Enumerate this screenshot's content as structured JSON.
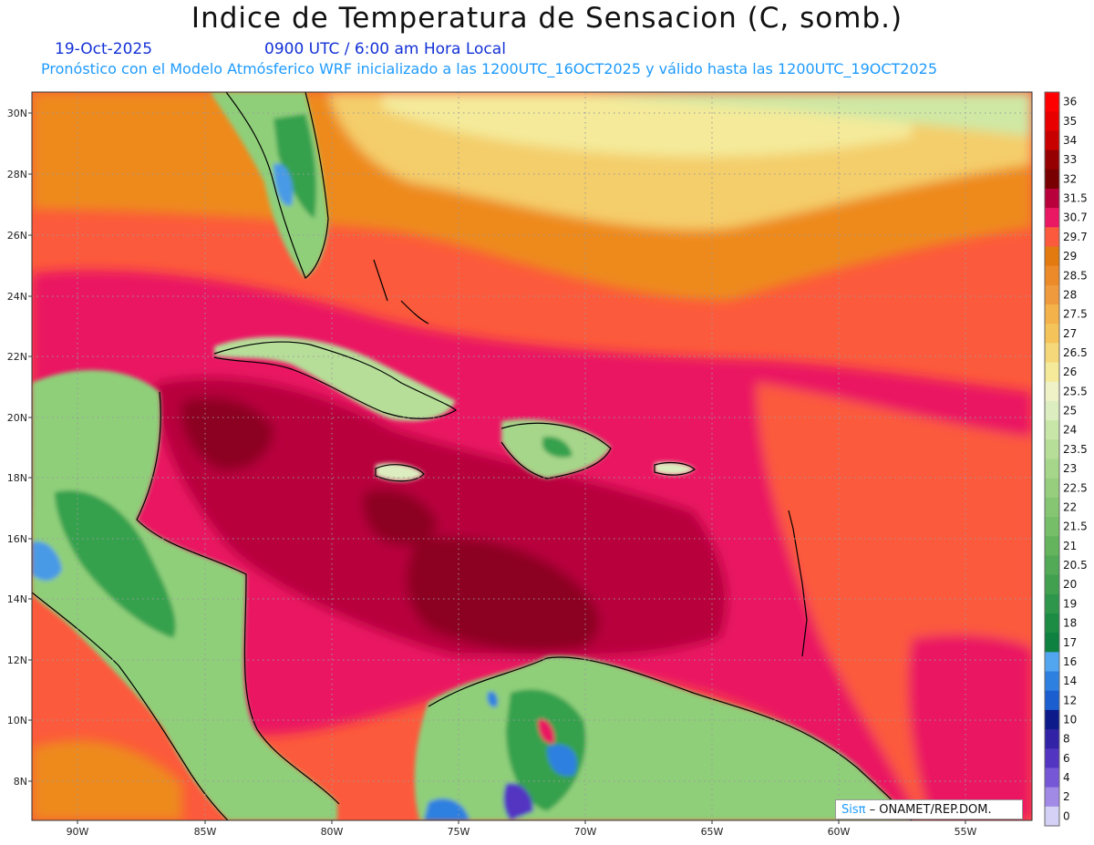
{
  "header": {
    "title": "Indice de Temperatura de Sensacion (C, somb.)",
    "date": "19-Oct-2025",
    "time": "0900 UTC / 6:00 am Hora Local",
    "subtitle": "Pronóstico con el Modelo Atmósferico WRF inicializado a las 1200UTC_16OCT2025 y válido hasta las  1200UTC_19OCT2025"
  },
  "map": {
    "lat_ticks": [
      "30N",
      "28N",
      "26N",
      "24N",
      "22N",
      "20N",
      "18N",
      "16N",
      "14N",
      "12N",
      "10N",
      "8N"
    ],
    "lon_ticks": [
      "90W",
      "85W",
      "80W",
      "75W",
      "70W",
      "65W",
      "60W",
      "55W"
    ],
    "colors": {
      "ocean_hot": "#ea1862",
      "ocean_very_hot": "#b8003c",
      "ocean_extreme": "#8c0020",
      "ocean_warm": "#fc5a3c",
      "ocean_mild": "#ee8a1a",
      "ocean_cool": "#f4ce6a",
      "land_green": "#8fcf7a",
      "land_dark": "#35a14e",
      "land_blue": "#4a9ae6",
      "coast": "#000000"
    }
  },
  "colorbar": {
    "labels": [
      "36",
      "35",
      "34",
      "33",
      "32",
      "31.5",
      "30.7",
      "29.7",
      "29",
      "28.5",
      "28",
      "27.5",
      "27",
      "26.5",
      "26",
      "25.5",
      "25",
      "24",
      "23.5",
      "23",
      "22.5",
      "22",
      "21.5",
      "21",
      "20.5",
      "20",
      "19",
      "18",
      "17",
      "16",
      "14",
      "12",
      "10",
      "8",
      "6",
      "4",
      "2",
      "0"
    ],
    "colors": [
      "#ff0000",
      "#e80000",
      "#c80000",
      "#960000",
      "#780000",
      "#b8003c",
      "#ea1862",
      "#fc5a3c",
      "#e27a10",
      "#ec8a2a",
      "#f09a3e",
      "#f4b24a",
      "#f4c45a",
      "#f4d87a",
      "#f4ea9a",
      "#eef2c6",
      "#dceec0",
      "#c8e6a8",
      "#b6de98",
      "#a6d68a",
      "#96ce7e",
      "#86c672",
      "#76be68",
      "#64b45e",
      "#52aa56",
      "#40a050",
      "#2e964a",
      "#1c8c44",
      "#0e8040",
      "#52a6f0",
      "#2e80e0",
      "#1a5ed0",
      "#0c1a8a",
      "#3222a6",
      "#5236c2",
      "#7658d6",
      "#a08ae6",
      "#d4d0f6"
    ]
  },
  "credit": {
    "brand": "Sisπ",
    "separator": " – ",
    "org": "ONAMET/REP.DOM."
  }
}
